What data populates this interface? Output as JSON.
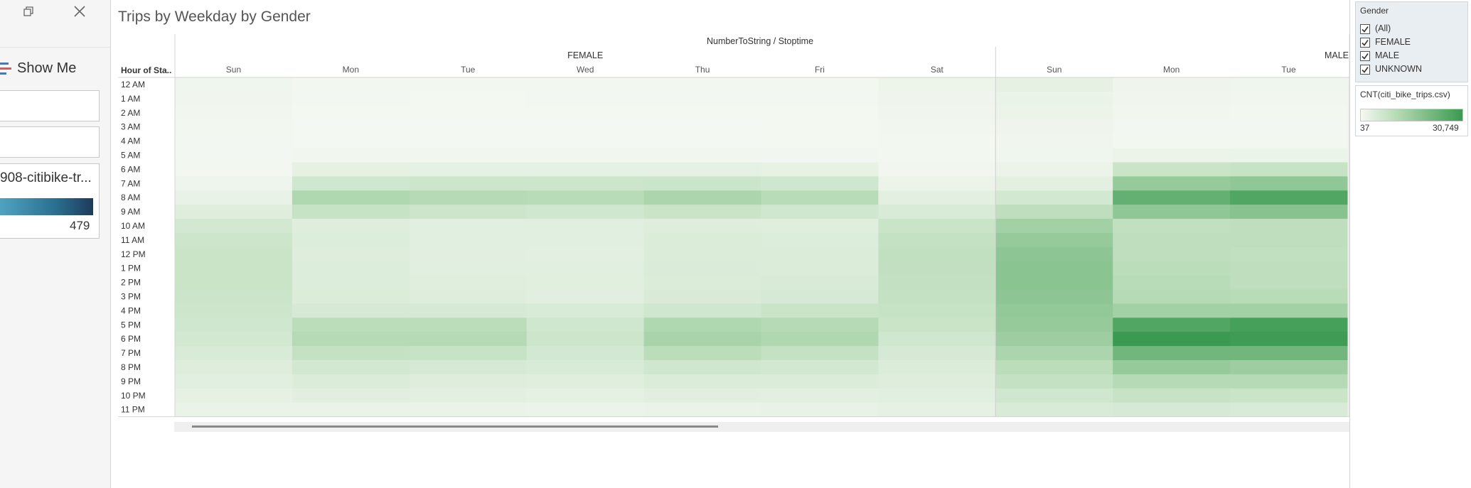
{
  "left_pane": {
    "show_me_label": "Show Me",
    "legend_card_title": "908-citibike-tr...",
    "legend_card_max": "479",
    "icons": [
      "restore-icon",
      "close-icon",
      "show-me-icon"
    ]
  },
  "sheet": {
    "title": "Trips by Weekday by Gender"
  },
  "filter": {
    "title": "Gender",
    "items": [
      {
        "label": "(All)",
        "checked": true
      },
      {
        "label": "FEMALE",
        "checked": true
      },
      {
        "label": "MALE",
        "checked": true
      },
      {
        "label": "UNKNOWN",
        "checked": true
      }
    ]
  },
  "color_legend": {
    "title": "CNT(citi_bike_trips.csv)",
    "min_label": "37",
    "max_label": "30,749",
    "low_color": "#f4f8f2",
    "high_color": "#3a9a50"
  },
  "chart_data": {
    "type": "heatmap",
    "title": "Trips by Weekday by Gender",
    "column_header": "NumberToString / Stoptime",
    "row_header": "Hour of Sta..",
    "measure": "CNT(citi_bike_trips.csv)",
    "color_range": [
      37,
      30749
    ],
    "rows": [
      "12 AM",
      "1 AM",
      "2 AM",
      "3 AM",
      "4 AM",
      "5 AM",
      "6 AM",
      "7 AM",
      "8 AM",
      "9 AM",
      "10 AM",
      "11 AM",
      "12 PM",
      "1 PM",
      "2 PM",
      "3 PM",
      "4 PM",
      "5 PM",
      "6 PM",
      "7 PM",
      "8 PM",
      "9 PM",
      "10 PM",
      "11 PM"
    ],
    "groups": [
      {
        "name": "FEMALE",
        "columns": [
          "Sun",
          "Mon",
          "Tue",
          "Wed",
          "Thu",
          "Fri",
          "Sat"
        ],
        "values": [
          [
            900,
            400,
            350,
            380,
            400,
            450,
            1300
          ],
          [
            700,
            250,
            220,
            240,
            260,
            300,
            1000
          ],
          [
            500,
            150,
            140,
            150,
            160,
            200,
            750
          ],
          [
            350,
            100,
            100,
            110,
            110,
            150,
            550
          ],
          [
            250,
            110,
            110,
            110,
            120,
            140,
            350
          ],
          [
            300,
            500,
            500,
            500,
            520,
            480,
            350
          ],
          [
            450,
            2500,
            2600,
            2600,
            2600,
            2300,
            600
          ],
          [
            1200,
            6500,
            7000,
            7000,
            7200,
            6500,
            1500
          ],
          [
            2200,
            12000,
            11000,
            10500,
            12500,
            10500,
            3000
          ],
          [
            4000,
            8000,
            7000,
            6500,
            7500,
            6500,
            5000
          ],
          [
            6000,
            4000,
            3500,
            3500,
            4000,
            3800,
            7500
          ],
          [
            7000,
            4200,
            3500,
            3500,
            4500,
            4200,
            8500
          ],
          [
            7500,
            4000,
            3200,
            3000,
            4500,
            4500,
            9000
          ],
          [
            7500,
            4200,
            3500,
            3300,
            4600,
            4500,
            8800
          ],
          [
            7500,
            4200,
            3600,
            3400,
            4500,
            5000,
            8700
          ],
          [
            7200,
            4500,
            4000,
            3200,
            4800,
            5500,
            8500
          ],
          [
            7000,
            5500,
            5500,
            5000,
            6500,
            7500,
            8000
          ],
          [
            6500,
            10000,
            10000,
            6500,
            12000,
            11000,
            7500
          ],
          [
            6000,
            11000,
            11000,
            7000,
            13000,
            12000,
            6500
          ],
          [
            5000,
            8500,
            8000,
            6000,
            10000,
            8500,
            5500
          ],
          [
            4000,
            6000,
            5500,
            5000,
            6500,
            6000,
            4500
          ],
          [
            3500,
            4500,
            4000,
            3800,
            4500,
            4500,
            4000
          ],
          [
            2500,
            3200,
            3000,
            2800,
            3200,
            3000,
            3500
          ],
          [
            2000,
            2000,
            1800,
            1700,
            1900,
            2200,
            2800
          ]
        ]
      },
      {
        "name": "MALE",
        "columns": [
          "Sun",
          "Mon",
          "Tue"
        ],
        "values": [
          [
            2500,
            1000,
            900
          ],
          [
            2000,
            700,
            600
          ],
          [
            1500,
            500,
            400
          ],
          [
            1000,
            300,
            300
          ],
          [
            700,
            400,
            400
          ],
          [
            900,
            1500,
            1600
          ],
          [
            1500,
            7500,
            8000
          ],
          [
            3000,
            16000,
            17000
          ],
          [
            6000,
            24000,
            27000
          ],
          [
            9500,
            17000,
            18500
          ],
          [
            14000,
            9000,
            9500
          ],
          [
            16000,
            9500,
            9500
          ],
          [
            17500,
            9500,
            9000
          ],
          [
            18000,
            10000,
            9500
          ],
          [
            18000,
            10500,
            9500
          ],
          [
            17500,
            11000,
            10500
          ],
          [
            16500,
            14000,
            14000
          ],
          [
            16000,
            27000,
            29000
          ],
          [
            15000,
            30749,
            30000
          ],
          [
            12500,
            22000,
            22000
          ],
          [
            10000,
            16000,
            15000
          ],
          [
            8500,
            11000,
            11000
          ],
          [
            6500,
            8000,
            7500
          ],
          [
            5000,
            5500,
            5000
          ]
        ]
      }
    ]
  }
}
